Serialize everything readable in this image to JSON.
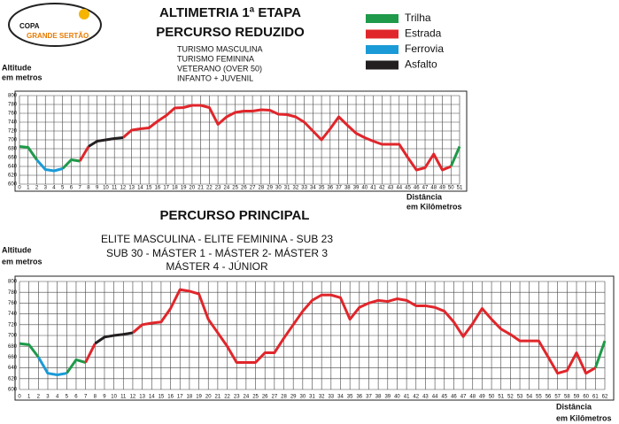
{
  "logo": {
    "top": "COPA",
    "name": "GRANDE SERTÃO"
  },
  "chart_data": [
    {
      "type": "line",
      "title": [
        "ALTIMETRIA 1ª ETAPA",
        "PERCURSO REDUZIDO"
      ],
      "subtitle": [
        "TURISMO MASCULINA",
        "TURISMO FEMININA",
        "VETERANO (OVER 50)",
        "INFANTO + JUVENIL"
      ],
      "ylabel": [
        "Altitude",
        "em metros"
      ],
      "xlabel": [
        "Distância",
        "em Kilômetros"
      ],
      "grid": true,
      "xlim": [
        0,
        51
      ],
      "ylim": [
        600,
        800
      ],
      "yticks": [
        600,
        620,
        640,
        660,
        680,
        700,
        720,
        740,
        760,
        780,
        800
      ],
      "xticks": [
        0,
        1,
        2,
        3,
        4,
        5,
        6,
        7,
        8,
        9,
        10,
        11,
        12,
        13,
        14,
        15,
        16,
        17,
        18,
        19,
        20,
        21,
        22,
        23,
        24,
        25,
        26,
        27,
        28,
        29,
        30,
        31,
        32,
        33,
        34,
        35,
        36,
        37,
        38,
        39,
        40,
        41,
        42,
        43,
        44,
        45,
        46,
        47,
        48,
        49,
        50,
        51
      ],
      "x": [
        0,
        1,
        2,
        3,
        4,
        5,
        6,
        7,
        8,
        9,
        10,
        11,
        12,
        13,
        14,
        15,
        16,
        17,
        18,
        19,
        20,
        21,
        22,
        23,
        24,
        25,
        26,
        27,
        28,
        29,
        30,
        31,
        32,
        33,
        34,
        35,
        36,
        37,
        38,
        39,
        40,
        41,
        42,
        43,
        44,
        45,
        46,
        47,
        48,
        49,
        50,
        51
      ],
      "series": [
        {
          "name": "Trilha",
          "color": "#1e9a4a",
          "values": [
            685,
            683,
            655,
            null,
            null,
            635,
            655,
            652,
            null,
            null,
            null,
            null,
            null,
            null,
            null,
            null,
            null,
            null,
            null,
            null,
            null,
            null,
            null,
            null,
            null,
            null,
            null,
            null,
            null,
            null,
            null,
            null,
            null,
            null,
            null,
            null,
            null,
            null,
            null,
            null,
            null,
            null,
            null,
            null,
            null,
            null,
            null,
            null,
            null,
            null,
            640,
            685
          ]
        },
        {
          "name": "Estrada",
          "color": "#e0262b",
          "values": [
            null,
            null,
            null,
            null,
            null,
            null,
            null,
            652,
            685,
            null,
            null,
            null,
            705,
            722,
            725,
            727,
            742,
            755,
            772,
            773,
            778,
            778,
            773,
            735,
            752,
            762,
            765,
            765,
            768,
            767,
            758,
            757,
            752,
            740,
            720,
            700,
            725,
            752,
            733,
            715,
            705,
            697,
            690,
            690,
            690,
            660,
            632,
            637,
            668,
            632,
            640,
            null
          ]
        },
        {
          "name": "Ferrovia",
          "color": "#1a9ad6",
          "values": [
            null,
            null,
            655,
            633,
            630,
            635,
            null,
            null,
            null,
            null,
            null,
            null,
            null,
            null,
            null,
            null,
            null,
            null,
            null,
            null,
            null,
            null,
            null,
            null,
            null,
            null,
            null,
            null,
            null,
            null,
            null,
            null,
            null,
            null,
            null,
            null,
            null,
            null,
            null,
            null,
            null,
            null,
            null,
            null,
            null,
            null,
            null,
            null,
            null,
            null,
            null,
            null
          ]
        },
        {
          "name": "Asfalto",
          "color": "#231f20",
          "values": [
            null,
            null,
            null,
            null,
            null,
            null,
            null,
            null,
            685,
            697,
            700,
            703,
            705,
            null,
            null,
            null,
            null,
            null,
            null,
            null,
            null,
            null,
            null,
            null,
            null,
            null,
            null,
            null,
            null,
            null,
            null,
            null,
            null,
            null,
            null,
            null,
            null,
            null,
            null,
            null,
            null,
            null,
            null,
            null,
            null,
            null,
            null,
            null,
            null,
            null,
            null,
            null
          ]
        }
      ]
    },
    {
      "type": "line",
      "title": [
        "PERCURSO PRINCIPAL"
      ],
      "subtitle": [
        "ELITE MASCULINA - ELITE FEMININA - SUB 23",
        "SUB 30 - MÁSTER 1 - MÁSTER 2- MÁSTER 3",
        "MÁSTER 4 - JÚNIOR"
      ],
      "ylabel": [
        "Altitude",
        "em metros"
      ],
      "xlabel": [
        "Distância",
        "em Kilômetros"
      ],
      "grid": true,
      "xlim": [
        0,
        62
      ],
      "ylim": [
        600,
        800
      ],
      "yticks": [
        600,
        620,
        640,
        660,
        680,
        700,
        720,
        740,
        760,
        780,
        800
      ],
      "xticks": [
        0,
        1,
        2,
        3,
        4,
        5,
        6,
        7,
        8,
        9,
        10,
        11,
        12,
        13,
        14,
        15,
        16,
        17,
        18,
        19,
        20,
        21,
        22,
        23,
        24,
        25,
        26,
        27,
        28,
        29,
        30,
        31,
        32,
        33,
        34,
        35,
        36,
        37,
        38,
        39,
        40,
        41,
        42,
        43,
        44,
        45,
        46,
        47,
        48,
        49,
        50,
        51,
        52,
        53,
        54,
        55,
        56,
        57,
        58,
        59,
        60,
        61,
        62
      ],
      "x": [
        0,
        1,
        2,
        3,
        4,
        5,
        6,
        7,
        8,
        9,
        10,
        11,
        12,
        13,
        14,
        15,
        16,
        17,
        18,
        19,
        20,
        21,
        22,
        23,
        24,
        25,
        26,
        27,
        28,
        29,
        30,
        31,
        32,
        33,
        34,
        35,
        36,
        37,
        38,
        39,
        40,
        41,
        42,
        43,
        44,
        45,
        46,
        47,
        48,
        49,
        50,
        51,
        52,
        53,
        54,
        55,
        56,
        57,
        58,
        59,
        60,
        61,
        62
      ],
      "series": [
        {
          "color": "#1e9a4a",
          "values": [
            685,
            683,
            660,
            null,
            null,
            630,
            655,
            650,
            null,
            null,
            null,
            null,
            null,
            null,
            null,
            null,
            null,
            null,
            null,
            null,
            null,
            null,
            null,
            null,
            null,
            null,
            null,
            null,
            null,
            null,
            null,
            null,
            null,
            null,
            null,
            null,
            null,
            null,
            null,
            null,
            null,
            null,
            null,
            null,
            null,
            null,
            null,
            null,
            null,
            null,
            null,
            null,
            null,
            null,
            null,
            null,
            null,
            null,
            null,
            null,
            null,
            640,
            690
          ]
        },
        {
          "color": "#e0262b",
          "values": [
            null,
            null,
            null,
            null,
            null,
            null,
            null,
            650,
            685,
            null,
            null,
            null,
            705,
            720,
            723,
            725,
            750,
            785,
            782,
            777,
            730,
            705,
            680,
            650,
            650,
            650,
            668,
            668,
            695,
            720,
            745,
            765,
            775,
            775,
            770,
            730,
            752,
            760,
            765,
            763,
            768,
            765,
            755,
            755,
            752,
            745,
            725,
            698,
            722,
            750,
            730,
            712,
            702,
            690,
            690,
            690,
            660,
            630,
            635,
            668,
            630,
            640,
            null
          ]
        },
        {
          "color": "#1a9ad6",
          "values": [
            null,
            null,
            660,
            630,
            627,
            630,
            null,
            null,
            null,
            null,
            null,
            null,
            null,
            null,
            null,
            null,
            null,
            null,
            null,
            null,
            null,
            null,
            null,
            null,
            null,
            null,
            null,
            null,
            null,
            null,
            null,
            null,
            null,
            null,
            null,
            null,
            null,
            null,
            null,
            null,
            null,
            null,
            null,
            null,
            null,
            null,
            null,
            null,
            null,
            null,
            null,
            null,
            null,
            null,
            null,
            null,
            null,
            null,
            null,
            null,
            null,
            null,
            null
          ]
        },
        {
          "color": "#231f20",
          "values": [
            null,
            null,
            null,
            null,
            null,
            null,
            null,
            null,
            685,
            697,
            700,
            702,
            705,
            null,
            null,
            null,
            null,
            null,
            null,
            null,
            null,
            null,
            null,
            null,
            null,
            null,
            null,
            null,
            null,
            null,
            null,
            null,
            null,
            null,
            null,
            null,
            null,
            null,
            null,
            null,
            null,
            null,
            null,
            null,
            null,
            null,
            null,
            null,
            null,
            null,
            null,
            null,
            null,
            null,
            null,
            null,
            null,
            null,
            null,
            null,
            null,
            null,
            null
          ]
        }
      ]
    }
  ]
}
